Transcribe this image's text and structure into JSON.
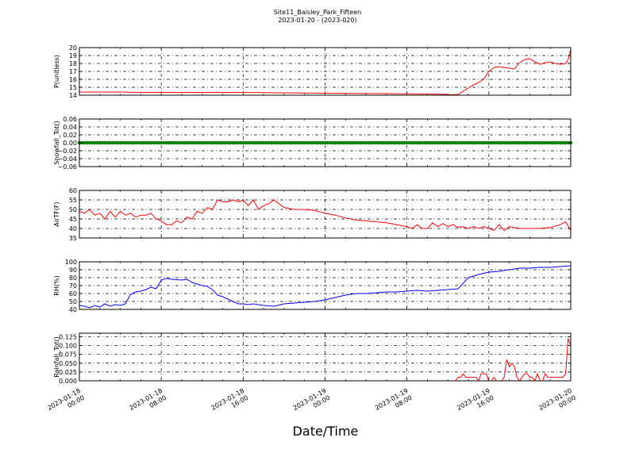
{
  "figure": {
    "title": "Site11_Baisley_Park_Fifteen",
    "subtitle": "2023-01-20 - (2023-020)",
    "xlabel": "Date/Time"
  },
  "chart_data": [
    {
      "type": "line",
      "id": "p",
      "ylabel": "P(unitless)",
      "ylim": [
        14,
        20
      ],
      "yticks": [
        14,
        15,
        16,
        17,
        18,
        19,
        20
      ],
      "ytick_labels": [
        "14",
        "15",
        "16",
        "17",
        "18",
        "19",
        "20"
      ],
      "xlim": [
        "2023-01-18 00:00",
        "2023-01-20 00:00"
      ],
      "color": "#ff0000",
      "grid": true,
      "series": [
        {
          "x": [
            "2023-01-18 00:00",
            "2023-01-18 02:00",
            "2023-01-18 04:00",
            "2023-01-18 06:00",
            "2023-01-18 10:00",
            "2023-01-18 16:00",
            "2023-01-18 20:00",
            "2023-01-19 00:00",
            "2023-01-19 06:00",
            "2023-01-19 10:00",
            "2023-01-19 12:00",
            "2023-01-19 12:15",
            "2023-01-19 13:00",
            "2023-01-19 14:00",
            "2023-01-19 14:30",
            "2023-01-19 15:00",
            "2023-01-19 15:30",
            "2023-01-19 16:00",
            "2023-01-19 16:30",
            "2023-01-19 17:00",
            "2023-01-19 17:30",
            "2023-01-19 18:00",
            "2023-01-19 18:30",
            "2023-01-19 19:00",
            "2023-01-19 19:30",
            "2023-01-19 20:00",
            "2023-01-19 20:30",
            "2023-01-19 21:00",
            "2023-01-19 21:30",
            "2023-01-19 22:00",
            "2023-01-19 22:30",
            "2023-01-19 23:00",
            "2023-01-19 23:30",
            "2023-01-19 23:45",
            "2023-01-20 00:00"
          ],
          "y": [
            14.4,
            14.4,
            14.4,
            14.35,
            14.35,
            14.35,
            14.3,
            14.25,
            14.2,
            14.15,
            14.1,
            14.05,
            14.1,
            14.9,
            15.3,
            15.6,
            16.0,
            17.0,
            17.5,
            17.6,
            17.5,
            17.4,
            17.3,
            18.1,
            18.5,
            18.6,
            18.2,
            17.9,
            18.1,
            18.2,
            18.0,
            17.9,
            18.0,
            18.5,
            19.7
          ]
        }
      ]
    },
    {
      "type": "scatter",
      "id": "snow",
      "ylabel": "Snowfall_Tot()",
      "ylim": [
        -0.06,
        0.06
      ],
      "yticks": [
        -0.06,
        -0.04,
        -0.02,
        0.0,
        0.02,
        0.04,
        0.06
      ],
      "ytick_labels": [
        "−0.06",
        "−0.04",
        "−0.02",
        "0.00",
        "0.02",
        "0.04",
        "0.06"
      ],
      "xlim": [
        "2023-01-18 00:00",
        "2023-01-20 00:00"
      ],
      "color": "#008000",
      "grid": true,
      "series": [
        {
          "value": 0.0,
          "interval_minutes": 15
        }
      ]
    },
    {
      "type": "line",
      "id": "airtf",
      "ylabel": "AirTF(F)",
      "ylim": [
        35,
        60
      ],
      "yticks": [
        35,
        40,
        45,
        50,
        55,
        60
      ],
      "ytick_labels": [
        "35",
        "40",
        "45",
        "50",
        "55",
        "60"
      ],
      "xlim": [
        "2023-01-18 00:00",
        "2023-01-20 00:00"
      ],
      "color": "#ff0000",
      "grid": true,
      "series": [
        {
          "x": [
            "2023-01-18 00:00",
            "2023-01-18 00:30",
            "2023-01-18 01:00",
            "2023-01-18 01:30",
            "2023-01-18 02:00",
            "2023-01-18 02:30",
            "2023-01-18 03:00",
            "2023-01-18 03:30",
            "2023-01-18 04:00",
            "2023-01-18 04:30",
            "2023-01-18 05:00",
            "2023-01-18 05:30",
            "2023-01-18 06:00",
            "2023-01-18 06:30",
            "2023-01-18 07:00",
            "2023-01-18 07:30",
            "2023-01-18 08:00",
            "2023-01-18 08:30",
            "2023-01-18 09:00",
            "2023-01-18 09:30",
            "2023-01-18 10:00",
            "2023-01-18 10:30",
            "2023-01-18 11:00",
            "2023-01-18 11:30",
            "2023-01-18 12:00",
            "2023-01-18 12:30",
            "2023-01-18 13:00",
            "2023-01-18 13:30",
            "2023-01-18 14:00",
            "2023-01-18 14:30",
            "2023-01-18 15:00",
            "2023-01-18 15:30",
            "2023-01-18 16:00",
            "2023-01-18 16:30",
            "2023-01-18 17:00",
            "2023-01-18 17:30",
            "2023-01-18 18:00",
            "2023-01-18 18:30",
            "2023-01-18 19:00",
            "2023-01-18 20:00",
            "2023-01-18 21:00",
            "2023-01-18 22:00",
            "2023-01-18 23:00",
            "2023-01-19 00:00",
            "2023-01-19 01:00",
            "2023-01-19 02:00",
            "2023-01-19 03:00",
            "2023-01-19 04:00",
            "2023-01-19 05:00",
            "2023-01-19 06:00",
            "2023-01-19 07:00",
            "2023-01-19 08:00",
            "2023-01-19 08:30",
            "2023-01-19 09:00",
            "2023-01-19 09:30",
            "2023-01-19 10:00",
            "2023-01-19 10:30",
            "2023-01-19 11:00",
            "2023-01-19 11:30",
            "2023-01-19 12:00",
            "2023-01-19 12:30",
            "2023-01-19 13:00",
            "2023-01-19 13:30",
            "2023-01-19 14:00",
            "2023-01-19 14:30",
            "2023-01-19 15:00",
            "2023-01-19 15:30",
            "2023-01-19 16:00",
            "2023-01-19 16:30",
            "2023-01-19 17:00",
            "2023-01-19 17:30",
            "2023-01-19 18:00",
            "2023-01-19 19:00",
            "2023-01-19 20:00",
            "2023-01-19 21:00",
            "2023-01-19 22:00",
            "2023-01-19 23:00",
            "2023-01-19 23:30",
            "2023-01-20 00:00"
          ],
          "y": [
            49,
            48,
            50,
            47,
            48,
            45,
            49,
            46,
            49,
            47,
            48,
            46,
            47,
            47,
            48,
            45,
            44,
            42,
            42,
            44,
            43,
            46,
            45,
            49,
            48,
            51,
            50,
            55,
            54,
            54,
            55,
            54,
            55,
            52,
            55,
            50,
            52,
            53,
            55,
            51,
            50,
            50,
            49.5,
            48,
            47,
            45.5,
            44.5,
            44,
            43.5,
            43,
            42,
            41,
            40,
            42,
            40,
            40,
            43,
            41,
            42.5,
            41,
            42,
            40.5,
            41,
            40,
            41,
            40,
            41,
            40,
            39,
            42,
            39,
            41,
            40,
            40,
            40,
            40.5,
            42,
            43.5,
            39
          ]
        }
      ]
    },
    {
      "type": "line",
      "id": "rh",
      "ylabel": "RH(%)",
      "ylim": [
        40,
        100
      ],
      "yticks": [
        40,
        50,
        60,
        70,
        80,
        90,
        100
      ],
      "ytick_labels": [
        "40",
        "50",
        "60",
        "70",
        "80",
        "90",
        "100"
      ],
      "xlim": [
        "2023-01-18 00:00",
        "2023-01-20 00:00"
      ],
      "color": "#0000ff",
      "grid": true,
      "series": [
        {
          "x": [
            "2023-01-18 00:00",
            "2023-01-18 00:30",
            "2023-01-18 01:00",
            "2023-01-18 01:30",
            "2023-01-18 02:00",
            "2023-01-18 02:30",
            "2023-01-18 03:00",
            "2023-01-18 03:30",
            "2023-01-18 04:00",
            "2023-01-18 04:30",
            "2023-01-18 05:00",
            "2023-01-18 05:30",
            "2023-01-18 06:00",
            "2023-01-18 06:30",
            "2023-01-18 07:00",
            "2023-01-18 07:30",
            "2023-01-18 08:00",
            "2023-01-18 08:30",
            "2023-01-18 09:00",
            "2023-01-18 10:00",
            "2023-01-18 10:30",
            "2023-01-18 11:00",
            "2023-01-18 11:30",
            "2023-01-18 12:00",
            "2023-01-18 12:30",
            "2023-01-18 13:00",
            "2023-01-18 13:30",
            "2023-01-18 14:00",
            "2023-01-18 15:00",
            "2023-01-18 15:30",
            "2023-01-18 16:00",
            "2023-01-18 16:30",
            "2023-01-18 17:00",
            "2023-01-18 18:00",
            "2023-01-18 19:00",
            "2023-01-18 20:00",
            "2023-01-18 21:00",
            "2023-01-18 22:00",
            "2023-01-18 23:00",
            "2023-01-19 00:00",
            "2023-01-19 01:00",
            "2023-01-19 02:00",
            "2023-01-19 03:00",
            "2023-01-19 04:00",
            "2023-01-19 05:00",
            "2023-01-19 06:00",
            "2023-01-19 07:00",
            "2023-01-19 08:00",
            "2023-01-19 09:00",
            "2023-01-19 10:00",
            "2023-01-19 11:00",
            "2023-01-19 12:00",
            "2023-01-19 13:00",
            "2023-01-19 14:00",
            "2023-01-19 15:00",
            "2023-01-19 16:00",
            "2023-01-19 17:00",
            "2023-01-19 18:00",
            "2023-01-19 19:00",
            "2023-01-19 20:00",
            "2023-01-19 21:00",
            "2023-01-19 22:00",
            "2023-01-19 23:00",
            "2023-01-20 00:00"
          ],
          "y": [
            45,
            44,
            42,
            45,
            43,
            47,
            44,
            46,
            45,
            47,
            59,
            62,
            63,
            65,
            68,
            66,
            77,
            79,
            78,
            77,
            78,
            74,
            72,
            70,
            69,
            65,
            58,
            56,
            50,
            47,
            47,
            46,
            47,
            45,
            44,
            47,
            48,
            49,
            50,
            52,
            55,
            58,
            60,
            60,
            61,
            62,
            62,
            63,
            64,
            63,
            64,
            65,
            66,
            80,
            84,
            87,
            88,
            90,
            92,
            92,
            93,
            93,
            94,
            95
          ]
        }
      ]
    },
    {
      "type": "line",
      "id": "rain",
      "ylabel": "Rainfall_Tot()",
      "ylim": [
        0,
        0.135
      ],
      "yticks": [
        0.0,
        0.025,
        0.05,
        0.075,
        0.1,
        0.125
      ],
      "ytick_labels": [
        "0.000",
        "0.025",
        "0.050",
        "0.075",
        "0.100",
        "0.125"
      ],
      "xlim": [
        "2023-01-18 00:00",
        "2023-01-20 00:00"
      ],
      "xticks": [
        "2023-01-18 00:00",
        "2023-01-18 08:00",
        "2023-01-18 16:00",
        "2023-01-19 00:00",
        "2023-01-19 08:00",
        "2023-01-19 16:00",
        "2023-01-20 00:00"
      ],
      "xtick_labels": [
        [
          "2023-01-18",
          "00:00"
        ],
        [
          "2023-01-18",
          "08:00"
        ],
        [
          "2023-01-18",
          "16:00"
        ],
        [
          "2023-01-19",
          "00:00"
        ],
        [
          "2023-01-19",
          "08:00"
        ],
        [
          "2023-01-19",
          "16:00"
        ],
        [
          "2023-01-20",
          "00:00"
        ]
      ],
      "color": "#ff0000",
      "grid": true,
      "series": [
        {
          "x": [
            "2023-01-18 00:00",
            "2023-01-19 12:00",
            "2023-01-19 12:15",
            "2023-01-19 12:30",
            "2023-01-19 12:45",
            "2023-01-19 13:00",
            "2023-01-19 13:15",
            "2023-01-19 13:30",
            "2023-01-19 13:45",
            "2023-01-19 14:00",
            "2023-01-19 14:15",
            "2023-01-19 14:30",
            "2023-01-19 14:45",
            "2023-01-19 15:00",
            "2023-01-19 15:15",
            "2023-01-19 15:30",
            "2023-01-19 15:45",
            "2023-01-19 16:00",
            "2023-01-19 16:15",
            "2023-01-19 16:30",
            "2023-01-19 16:45",
            "2023-01-19 17:00",
            "2023-01-19 17:15",
            "2023-01-19 17:30",
            "2023-01-19 17:45",
            "2023-01-19 18:00",
            "2023-01-19 18:15",
            "2023-01-19 18:30",
            "2023-01-19 18:45",
            "2023-01-19 19:00",
            "2023-01-19 19:15",
            "2023-01-19 19:30",
            "2023-01-19 19:45",
            "2023-01-19 20:00",
            "2023-01-19 20:15",
            "2023-01-19 20:30",
            "2023-01-19 20:45",
            "2023-01-19 21:00",
            "2023-01-19 21:15",
            "2023-01-19 21:30",
            "2023-01-19 21:45",
            "2023-01-19 22:00",
            "2023-01-19 22:15",
            "2023-01-19 22:30",
            "2023-01-19 22:45",
            "2023-01-19 23:00",
            "2023-01-19 23:15",
            "2023-01-19 23:30",
            "2023-01-19 23:45",
            "2023-01-20 00:00"
          ],
          "y": [
            0,
            0,
            0,
            0,
            0,
            0.01,
            0.01,
            0.02,
            0.01,
            0.01,
            0.01,
            0.01,
            0.01,
            0.0,
            0.02,
            0.02,
            0.02,
            0.0,
            0.0,
            0.01,
            0.0,
            0.0,
            0.0,
            0.01,
            0.06,
            0.04,
            0.05,
            0.04,
            0.01,
            0.0,
            0.01,
            0.02,
            0.02,
            0.01,
            0.01,
            0.0,
            0.02,
            0.0,
            0.0,
            0.02,
            0.01,
            0.01,
            0.01,
            0.01,
            0.01,
            0.01,
            0.01,
            0.02,
            0.12,
            0.1
          ]
        }
      ]
    }
  ]
}
